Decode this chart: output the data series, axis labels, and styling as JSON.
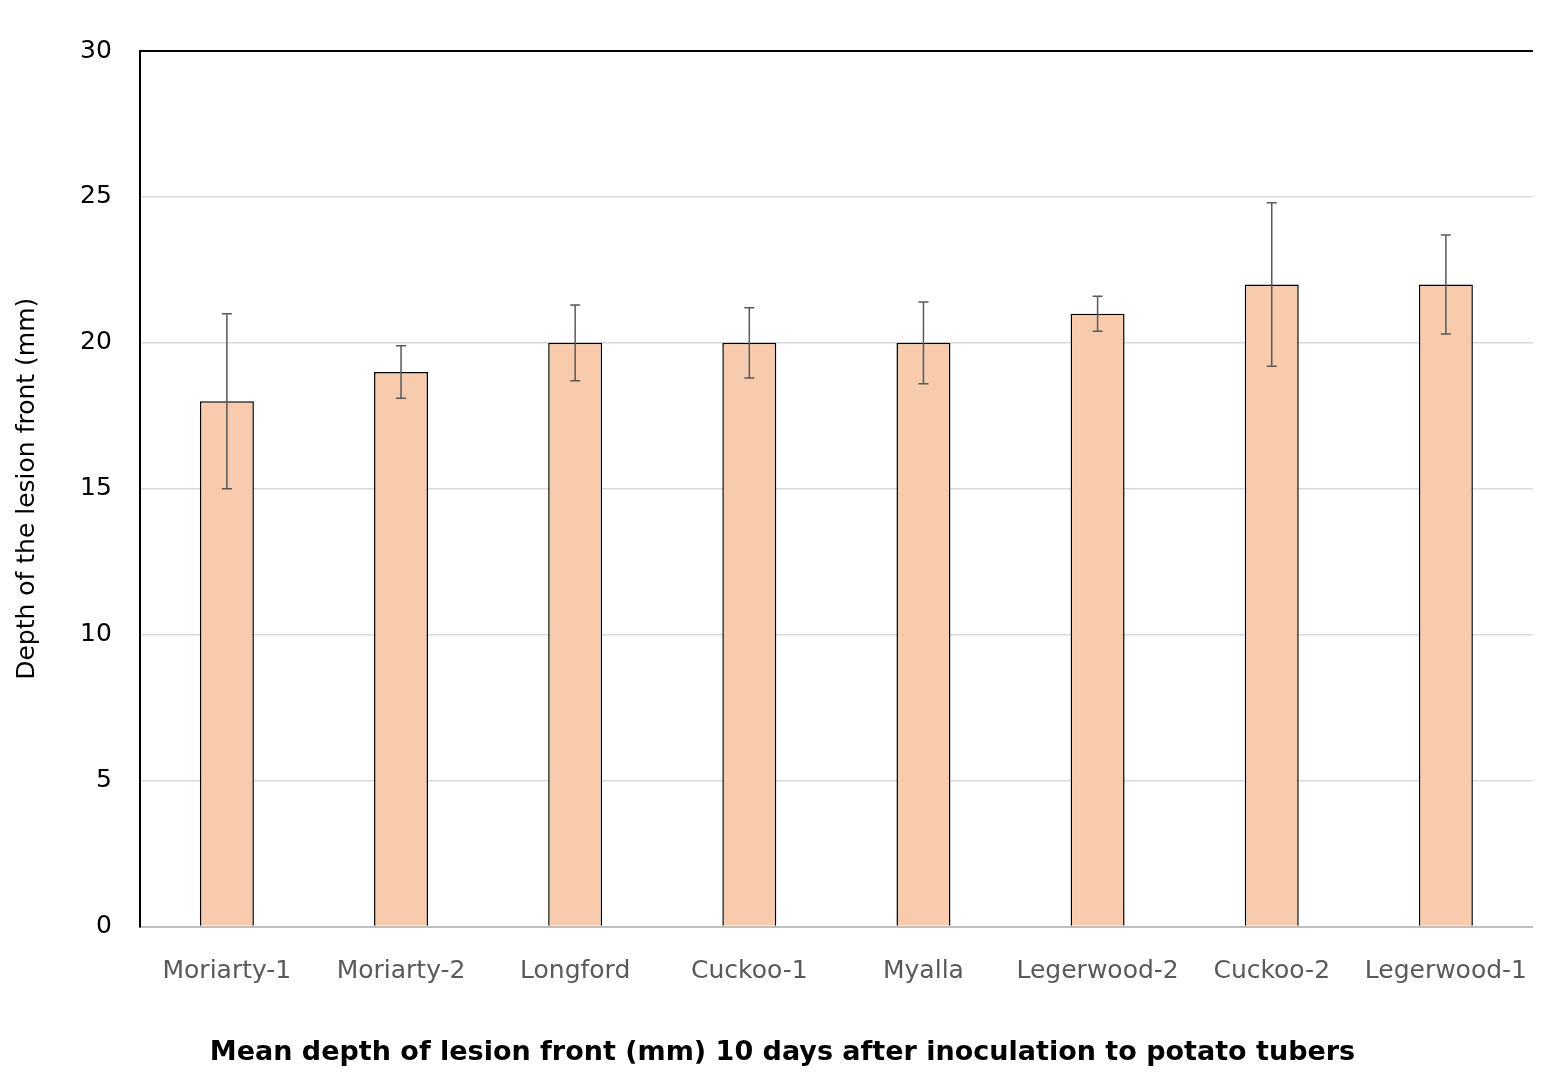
{
  "chart_data": {
    "type": "bar",
    "title": "Mean depth of lesion front (mm) 10 days after inoculation to potato tubers",
    "ylabel": "Depth of the lesion front (mm)",
    "categories": [
      "Moriarty-1",
      "Moriarty-2",
      "Longford",
      "Cuckoo-1",
      "Myalla",
      "Legerwood-2",
      "Cuckoo-2",
      "Legerwood-1"
    ],
    "values": [
      18,
      19,
      20,
      20,
      20,
      21,
      22,
      22
    ],
    "errors": [
      3,
      0.9,
      1.3,
      1.2,
      1.4,
      0.6,
      2.8,
      1.7
    ],
    "color": "#f8cbad",
    "ylim": [
      0,
      30
    ],
    "yticks": [
      0,
      5,
      10,
      15,
      20,
      25,
      30
    ],
    "grid": "y",
    "legend": false
  }
}
